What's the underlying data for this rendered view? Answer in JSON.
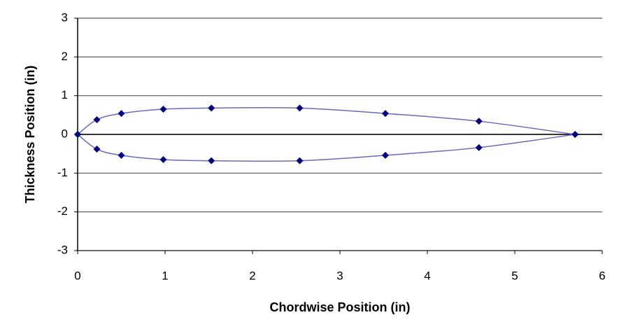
{
  "chart_data": {
    "type": "scatter",
    "x_label": "Chordwise Position (in)",
    "y_label": "Thickness Position (in)",
    "xlim": [
      0,
      6
    ],
    "xticks": [
      0,
      1,
      2,
      3,
      4,
      5,
      6
    ],
    "ylim": [
      -3,
      3
    ],
    "yticks": [
      -3,
      -2,
      -1,
      0,
      1,
      2,
      3
    ],
    "grid": true,
    "line_color": "#6a6ab8",
    "series": [
      {
        "color": "#000080",
        "x": [
          0,
          0.22,
          0.5,
          0.98,
          1.53,
          2.54,
          3.52,
          4.59,
          5.69
        ],
        "values": [
          0,
          0.38,
          0.54,
          0.65,
          0.68,
          0.68,
          0.54,
          0.34,
          0
        ]
      },
      {
        "color": "#000080",
        "x": [
          0,
          0.22,
          0.5,
          0.98,
          1.53,
          2.54,
          3.52,
          4.59,
          5.69
        ],
        "values": [
          0,
          -0.38,
          -0.54,
          -0.65,
          -0.68,
          -0.68,
          -0.54,
          -0.34,
          0
        ]
      }
    ]
  }
}
